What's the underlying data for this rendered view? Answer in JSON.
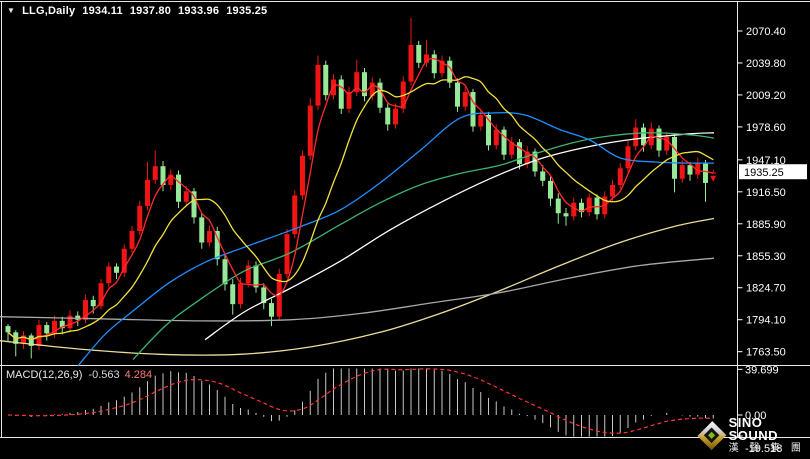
{
  "header": {
    "arrow": "▼",
    "symbol_period": "LLG,Daily",
    "open": "1934.11",
    "high": "1937.80",
    "low": "1933.96",
    "close": "1935.25"
  },
  "indicator": {
    "name": "MACD(12,26,9)",
    "main_value": "-0.563",
    "signal_value": "4.284"
  },
  "watermark": {
    "brand": "SINO SOUND",
    "brand_cn": "漢 聲 集 團"
  },
  "colors": {
    "background": "#000000",
    "border": "#e6e6e6",
    "axis_text": "#ffffff",
    "bull": "#f01414",
    "bear": "#97e897",
    "price_tag_bg": "#ffffff",
    "price_tag_text": "#000000",
    "macd_histogram": "#c8c8c8",
    "macd_signal": "#ff3434"
  },
  "chart_data": {
    "type": "candlestick",
    "symbol": "LLG",
    "timeframe": "Daily",
    "grid": "off",
    "legend_position": "none",
    "price_axis": {
      "ticks": [
        "2070.40",
        "2039.80",
        "2009.20",
        "1978.60",
        "1947.10",
        "1916.50",
        "1885.90",
        "1855.30",
        "1824.70",
        "1794.10",
        "1763.50"
      ],
      "current_price": 1935.25,
      "current_price_label": "1935.25"
    },
    "macd_axis": {
      "labels": [
        "39.699",
        "0.00",
        "-19.518"
      ],
      "values": [
        39.699,
        0,
        -19.518
      ]
    },
    "candles": [
      [
        1788,
        1790,
        1773,
        1782
      ],
      [
        1782,
        1784,
        1759,
        1771
      ],
      [
        1771,
        1783,
        1766,
        1779
      ],
      [
        1779,
        1781,
        1757,
        1769
      ],
      [
        1769,
        1794,
        1765,
        1789
      ],
      [
        1789,
        1792,
        1774,
        1781
      ],
      [
        1781,
        1798,
        1777,
        1793
      ],
      [
        1793,
        1797,
        1780,
        1786
      ],
      [
        1786,
        1803,
        1782,
        1798
      ],
      [
        1798,
        1802,
        1788,
        1794
      ],
      [
        1794,
        1818,
        1791,
        1813
      ],
      [
        1813,
        1817,
        1800,
        1807
      ],
      [
        1807,
        1833,
        1804,
        1829
      ],
      [
        1829,
        1849,
        1825,
        1845
      ],
      [
        1845,
        1848,
        1833,
        1839
      ],
      [
        1839,
        1866,
        1835,
        1862
      ],
      [
        1862,
        1884,
        1858,
        1879
      ],
      [
        1879,
        1908,
        1875,
        1903
      ],
      [
        1903,
        1945,
        1899,
        1928
      ],
      [
        1928,
        1956,
        1924,
        1941
      ],
      [
        1941,
        1946,
        1917,
        1923
      ],
      [
        1923,
        1938,
        1918,
        1933
      ],
      [
        1933,
        1937,
        1901,
        1907
      ],
      [
        1907,
        1922,
        1903,
        1917
      ],
      [
        1917,
        1920,
        1886,
        1892
      ],
      [
        1892,
        1896,
        1862,
        1868
      ],
      [
        1868,
        1884,
        1864,
        1879
      ],
      [
        1879,
        1883,
        1846,
        1852
      ],
      [
        1852,
        1856,
        1822,
        1828
      ],
      [
        1828,
        1833,
        1799,
        1809
      ],
      [
        1809,
        1834,
        1805,
        1829
      ],
      [
        1829,
        1851,
        1825,
        1846
      ],
      [
        1846,
        1850,
        1820,
        1825
      ],
      [
        1825,
        1829,
        1804,
        1810
      ],
      [
        1810,
        1814,
        1788,
        1797
      ],
      [
        1797,
        1843,
        1793,
        1838
      ],
      [
        1838,
        1881,
        1834,
        1876
      ],
      [
        1876,
        1918,
        1872,
        1913
      ],
      [
        1913,
        1956,
        1909,
        1951
      ],
      [
        1951,
        2006,
        1947,
        1999
      ],
      [
        1999,
        2047,
        1995,
        2038
      ],
      [
        2038,
        2042,
        2004,
        2009
      ],
      [
        2009,
        2029,
        2005,
        2024
      ],
      [
        2024,
        2028,
        1991,
        1996
      ],
      [
        1996,
        2017,
        1992,
        2012
      ],
      [
        2012,
        2043,
        2008,
        2031
      ],
      [
        2031,
        2035,
        2003,
        2008
      ],
      [
        2008,
        2026,
        2004,
        2021
      ],
      [
        2021,
        2025,
        1992,
        1997
      ],
      [
        1997,
        2001,
        1975,
        1981
      ],
      [
        1981,
        2001,
        1977,
        1996
      ],
      [
        1996,
        2027,
        1992,
        2022
      ],
      [
        2022,
        2083,
        2018,
        2057
      ],
      [
        2057,
        2061,
        2035,
        2040
      ],
      [
        2040,
        2062,
        2036,
        2048
      ],
      [
        2048,
        2052,
        2025,
        2030
      ],
      [
        2030,
        2047,
        2026,
        2042
      ],
      [
        2042,
        2046,
        2016,
        2021
      ],
      [
        2021,
        2025,
        1993,
        1998
      ],
      [
        1998,
        2017,
        1994,
        2012
      ],
      [
        2012,
        2015,
        1974,
        1979
      ],
      [
        1979,
        1995,
        1975,
        1990
      ],
      [
        1990,
        1993,
        1956,
        1961
      ],
      [
        1961,
        1981,
        1957,
        1976
      ],
      [
        1976,
        1979,
        1947,
        1952
      ],
      [
        1952,
        1969,
        1948,
        1964
      ],
      [
        1964,
        1967,
        1938,
        1943
      ],
      [
        1943,
        1960,
        1939,
        1955
      ],
      [
        1955,
        1958,
        1931,
        1936
      ],
      [
        1936,
        1942,
        1922,
        1927
      ],
      [
        1927,
        1931,
        1903,
        1910
      ],
      [
        1910,
        1915,
        1886,
        1896
      ],
      [
        1896,
        1901,
        1884,
        1893
      ],
      [
        1893,
        1911,
        1889,
        1906
      ],
      [
        1906,
        1910,
        1892,
        1897
      ],
      [
        1897,
        1915,
        1893,
        1911
      ],
      [
        1911,
        1914,
        1890,
        1895
      ],
      [
        1895,
        1917,
        1891,
        1912
      ],
      [
        1912,
        1928,
        1908,
        1923
      ],
      [
        1923,
        1944,
        1919,
        1939
      ],
      [
        1939,
        1965,
        1935,
        1960
      ],
      [
        1960,
        1986,
        1956,
        1978
      ],
      [
        1978,
        1982,
        1955,
        1961
      ],
      [
        1961,
        1983,
        1957,
        1977
      ],
      [
        1977,
        1980,
        1950,
        1956
      ],
      [
        1956,
        1974,
        1952,
        1969
      ],
      [
        1969,
        1972,
        1916,
        1929
      ],
      [
        1929,
        1947,
        1925,
        1942
      ],
      [
        1942,
        1945,
        1927,
        1933
      ],
      [
        1933,
        1949,
        1929,
        1944
      ],
      [
        1944,
        1947,
        1907,
        1925
      ],
      [
        1934.11,
        1937.8,
        1933.96,
        1935.25
      ]
    ],
    "moving_averages_computed": [
      {
        "name": "ma-fast-red",
        "period": 4,
        "color": "#ff2a2a"
      },
      {
        "name": "ma-mid-yellow",
        "period": 10,
        "color": "#f2e13c"
      }
    ],
    "moving_averages_traced": [
      {
        "name": "ma-khaki-slowest",
        "color": "#e9dd9a",
        "points": [
          [
            0,
            1774
          ],
          [
            80,
            1766
          ],
          [
            160,
            1761
          ],
          [
            240,
            1761
          ],
          [
            310,
            1768
          ],
          [
            380,
            1782
          ],
          [
            440,
            1800
          ],
          [
            500,
            1822
          ],
          [
            560,
            1846
          ],
          [
            620,
            1868
          ],
          [
            677,
            1884
          ],
          [
            714,
            1891
          ]
        ]
      },
      {
        "name": "ma-gray-slow",
        "color": "#a8a8a8",
        "points": [
          [
            0,
            1797
          ],
          [
            100,
            1795
          ],
          [
            200,
            1793
          ],
          [
            290,
            1794
          ],
          [
            360,
            1800
          ],
          [
            430,
            1810
          ],
          [
            500,
            1820
          ],
          [
            570,
            1834
          ],
          [
            640,
            1846
          ],
          [
            714,
            1853
          ]
        ]
      },
      {
        "name": "ma-white-long",
        "color": "#ffffff",
        "points": [
          [
            205,
            1775
          ],
          [
            245,
            1802
          ],
          [
            290,
            1824
          ],
          [
            340,
            1850
          ],
          [
            390,
            1880
          ],
          [
            440,
            1906
          ],
          [
            490,
            1929
          ],
          [
            540,
            1948
          ],
          [
            590,
            1960
          ],
          [
            635,
            1967
          ],
          [
            690,
            1972
          ],
          [
            714,
            1973
          ]
        ]
      },
      {
        "name": "ma-green-medium",
        "color": "#3cb371",
        "points": [
          [
            133,
            1756
          ],
          [
            165,
            1788
          ],
          [
            195,
            1810
          ],
          [
            243,
            1840
          ],
          [
            290,
            1858
          ],
          [
            340,
            1885
          ],
          [
            380,
            1906
          ],
          [
            420,
            1923
          ],
          [
            460,
            1934
          ],
          [
            500,
            1942
          ],
          [
            535,
            1953
          ],
          [
            575,
            1964
          ],
          [
            610,
            1970
          ],
          [
            650,
            1973
          ],
          [
            690,
            1971
          ],
          [
            714,
            1968
          ]
        ]
      },
      {
        "name": "ma-blue-medium",
        "color": "#1e90ff",
        "points": [
          [
            78,
            1750
          ],
          [
            105,
            1780
          ],
          [
            135,
            1804
          ],
          [
            170,
            1830
          ],
          [
            205,
            1849
          ],
          [
            243,
            1863
          ],
          [
            300,
            1883
          ],
          [
            340,
            1899
          ],
          [
            380,
            1925
          ],
          [
            420,
            1956
          ],
          [
            460,
            1987
          ],
          [
            495,
            1992
          ],
          [
            525,
            1990
          ],
          [
            560,
            1976
          ],
          [
            590,
            1966
          ],
          [
            620,
            1949
          ],
          [
            655,
            1945
          ],
          [
            690,
            1944
          ],
          [
            714,
            1944
          ]
        ]
      }
    ],
    "macd": {
      "fast": 12,
      "slow": 26,
      "signal_period": 9,
      "histogram_color": "#c8c8c8",
      "signal_color": "#ff3434",
      "signal_style": "dashed"
    },
    "marker": {
      "bar_index": 91,
      "price": 1928.0,
      "direction": "down",
      "color": "#f01414"
    }
  }
}
